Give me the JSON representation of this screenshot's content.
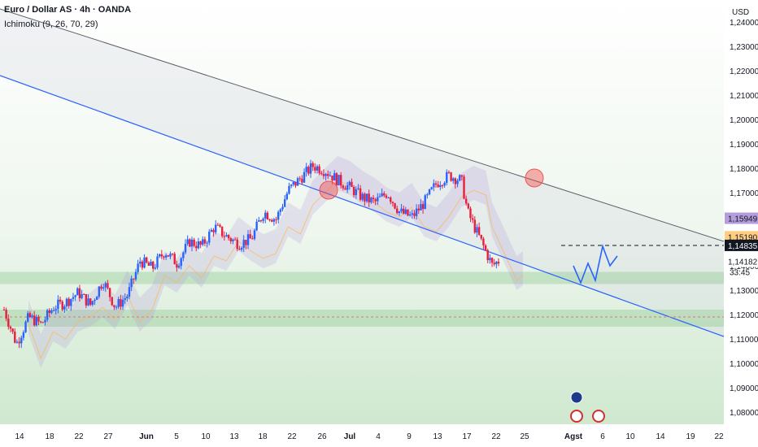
{
  "header": {
    "title": "Euro / Dollar AS · 4h · OANDA",
    "indicator": "Ichimoku (9, 26, 70, 29)"
  },
  "colors": {
    "bull": "#2962ff",
    "bear": "#e91e3f",
    "channel_line": "#2962ff",
    "resistance_line": "#5d606b",
    "support_zone": "#81c784",
    "cloud_purple": "#b39ddb",
    "cloud_orange": "#ffb74d",
    "highlight_circle": "#ef5350"
  },
  "chart_data": {
    "type": "candlestick",
    "price_axis": {
      "unit": "USD",
      "ticks": [
        "1,24000",
        "1,23000",
        "1,22000",
        "1,21000",
        "1,20000",
        "1,19000",
        "1,18000",
        "1,17000",
        "1,16000",
        "1,15000",
        "1,14000",
        "1,13000",
        "1,12000",
        "1,11000",
        "1,10000",
        "1,09000",
        "1,08000"
      ],
      "ylim": [
        1.075,
        1.247
      ]
    },
    "price_labels": [
      {
        "value": "1,15949",
        "bg": "#b39ddb",
        "fg": "#131722"
      },
      {
        "value": "1,15190",
        "bg": "#ffcc80",
        "fg": "#131722"
      },
      {
        "value": "1,14835",
        "bg": "#131722",
        "fg": "#ffffff"
      },
      {
        "value": "1,14182",
        "bg": "#ffffff",
        "fg": "#131722"
      }
    ],
    "countdown": "33:45",
    "time_axis": {
      "labels": [
        "14",
        "18",
        "22",
        "27",
        "Jun",
        "5",
        "10",
        "13",
        "18",
        "22",
        "26",
        "Jul",
        "4",
        "9",
        "13",
        "17",
        "22",
        "25",
        "Agst",
        "6",
        "10",
        "14",
        "19",
        "22"
      ],
      "bold": [
        "Jun",
        "Jul",
        "Agst"
      ]
    },
    "price_path": [
      [
        0,
        1.122
      ],
      [
        0.02,
        1.108
      ],
      [
        0.04,
        1.119
      ],
      [
        0.06,
        1.116
      ],
      [
        0.08,
        1.123
      ],
      [
        0.1,
        1.125
      ],
      [
        0.12,
        1.129
      ],
      [
        0.14,
        1.124
      ],
      [
        0.16,
        1.134
      ],
      [
        0.18,
        1.123
      ],
      [
        0.2,
        1.128
      ],
      [
        0.22,
        1.142
      ],
      [
        0.24,
        1.139
      ],
      [
        0.26,
        1.146
      ],
      [
        0.28,
        1.141
      ],
      [
        0.3,
        1.15
      ],
      [
        0.32,
        1.148
      ],
      [
        0.34,
        1.156
      ],
      [
        0.36,
        1.152
      ],
      [
        0.38,
        1.149
      ],
      [
        0.4,
        1.151
      ],
      [
        0.42,
        1.162
      ],
      [
        0.44,
        1.159
      ],
      [
        0.46,
        1.171
      ],
      [
        0.48,
        1.176
      ],
      [
        0.5,
        1.181
      ],
      [
        0.52,
        1.179
      ],
      [
        0.54,
        1.175
      ],
      [
        0.56,
        1.172
      ],
      [
        0.58,
        1.168
      ],
      [
        0.6,
        1.166
      ],
      [
        0.62,
        1.17
      ],
      [
        0.64,
        1.162
      ],
      [
        0.66,
        1.16
      ],
      [
        0.68,
        1.166
      ],
      [
        0.7,
        1.174
      ],
      [
        0.72,
        1.177
      ],
      [
        0.74,
        1.175
      ],
      [
        0.75,
        1.162
      ],
      [
        0.77,
        1.151
      ],
      [
        0.79,
        1.14
      ],
      [
        0.8,
        1.142
      ]
    ],
    "projection": [
      [
        1.14
      ],
      [
        1.133
      ],
      [
        1.141
      ],
      [
        1.134
      ],
      [
        1.148
      ],
      [
        1.14
      ],
      [
        1.144
      ]
    ],
    "channel": {
      "upper_start": 1.245,
      "upper_end": 1.15,
      "lower_start": 1.218,
      "lower_end": 1.111
    },
    "support_zones": [
      [
        1.1375,
        1.1325
      ],
      [
        1.122,
        1.115
      ]
    ],
    "dashed_levels": [
      "1,14835",
      "1,11900"
    ],
    "markers": [
      {
        "label": "event-icon"
      },
      {
        "label": "us-flag-icon"
      },
      {
        "label": "us-flag-icon"
      }
    ]
  }
}
